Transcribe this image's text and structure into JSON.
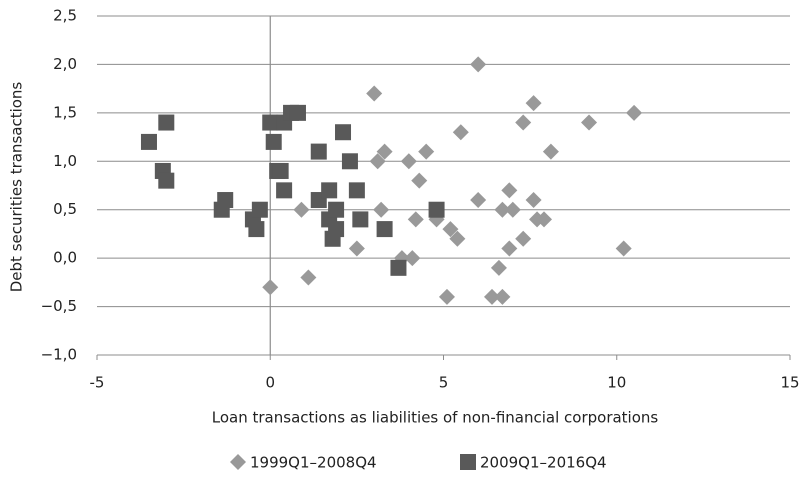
{
  "chart_data": {
    "type": "scatter",
    "x_label": "Loan transactions as liabilities of non-financial corporations",
    "y_label": "Debt securities transactions",
    "xlim": [
      -5,
      15
    ],
    "xticks": [
      -5,
      0,
      5,
      10,
      15
    ],
    "ylim": [
      -1.0,
      2.5
    ],
    "yticks": [
      {
        "value": -1.0,
        "label": "−1,0"
      },
      {
        "value": -0.5,
        "label": "−0,5"
      },
      {
        "value": 0.0,
        "label": "0,0"
      },
      {
        "value": 0.5,
        "label": "0,5"
      },
      {
        "value": 1.0,
        "label": "1,0"
      },
      {
        "value": 1.5,
        "label": "1,5"
      },
      {
        "value": 2.0,
        "label": "2,0"
      },
      {
        "value": 2.5,
        "label": "2,5"
      }
    ],
    "grid": true,
    "legend": "bottom",
    "series": [
      {
        "name": "1999Q1–2008Q4",
        "color": "#999999",
        "marker": "diamond",
        "x": [
          0,
          1.1,
          0.9,
          2.5,
          3.0,
          3.1,
          3.2,
          3.3,
          3.8,
          4.0,
          4.1,
          4.2,
          4.3,
          4.5,
          4.8,
          5.1,
          5.2,
          5.4,
          5.5,
          6.0,
          6.0,
          6.4,
          6.6,
          6.7,
          6.7,
          6.9,
          6.9,
          7.0,
          7.3,
          7.3,
          7.6,
          7.6,
          7.7,
          7.9,
          8.1,
          9.2,
          10.2,
          10.5
        ],
        "values": [
          -0.3,
          -0.2,
          0.5,
          0.1,
          1.7,
          1.0,
          0.5,
          1.1,
          0.0,
          1.0,
          0.0,
          0.4,
          0.8,
          1.1,
          0.4,
          -0.4,
          0.3,
          0.2,
          1.3,
          2.0,
          0.6,
          -0.4,
          -0.1,
          0.5,
          -0.4,
          0.7,
          0.1,
          0.5,
          1.4,
          0.2,
          1.6,
          0.6,
          0.4,
          0.4,
          1.1,
          1.4,
          0.1,
          1.5
        ]
      },
      {
        "name": "2009Q1–2016Q4",
        "color": "#595959",
        "marker": "square",
        "x": [
          -3.5,
          -3.0,
          -3.1,
          -3.0,
          -1.3,
          -1.4,
          -0.5,
          -0.4,
          -0.3,
          0,
          0.1,
          0.2,
          0.3,
          0.4,
          0.4,
          0.6,
          0.8,
          1.4,
          1.4,
          1.7,
          1.7,
          1.9,
          1.9,
          1.8,
          2.1,
          2.3,
          2.5,
          2.6,
          3.3,
          3.7,
          4.8
        ],
        "values": [
          1.2,
          1.4,
          0.9,
          0.8,
          0.6,
          0.5,
          0.4,
          0.3,
          0.5,
          1.4,
          1.2,
          0.9,
          0.9,
          1.4,
          0.7,
          1.5,
          1.5,
          0.6,
          1.1,
          0.7,
          0.4,
          0.5,
          0.3,
          0.2,
          1.3,
          1.0,
          0.7,
          0.4,
          0.3,
          -0.1,
          0.5
        ]
      }
    ]
  }
}
